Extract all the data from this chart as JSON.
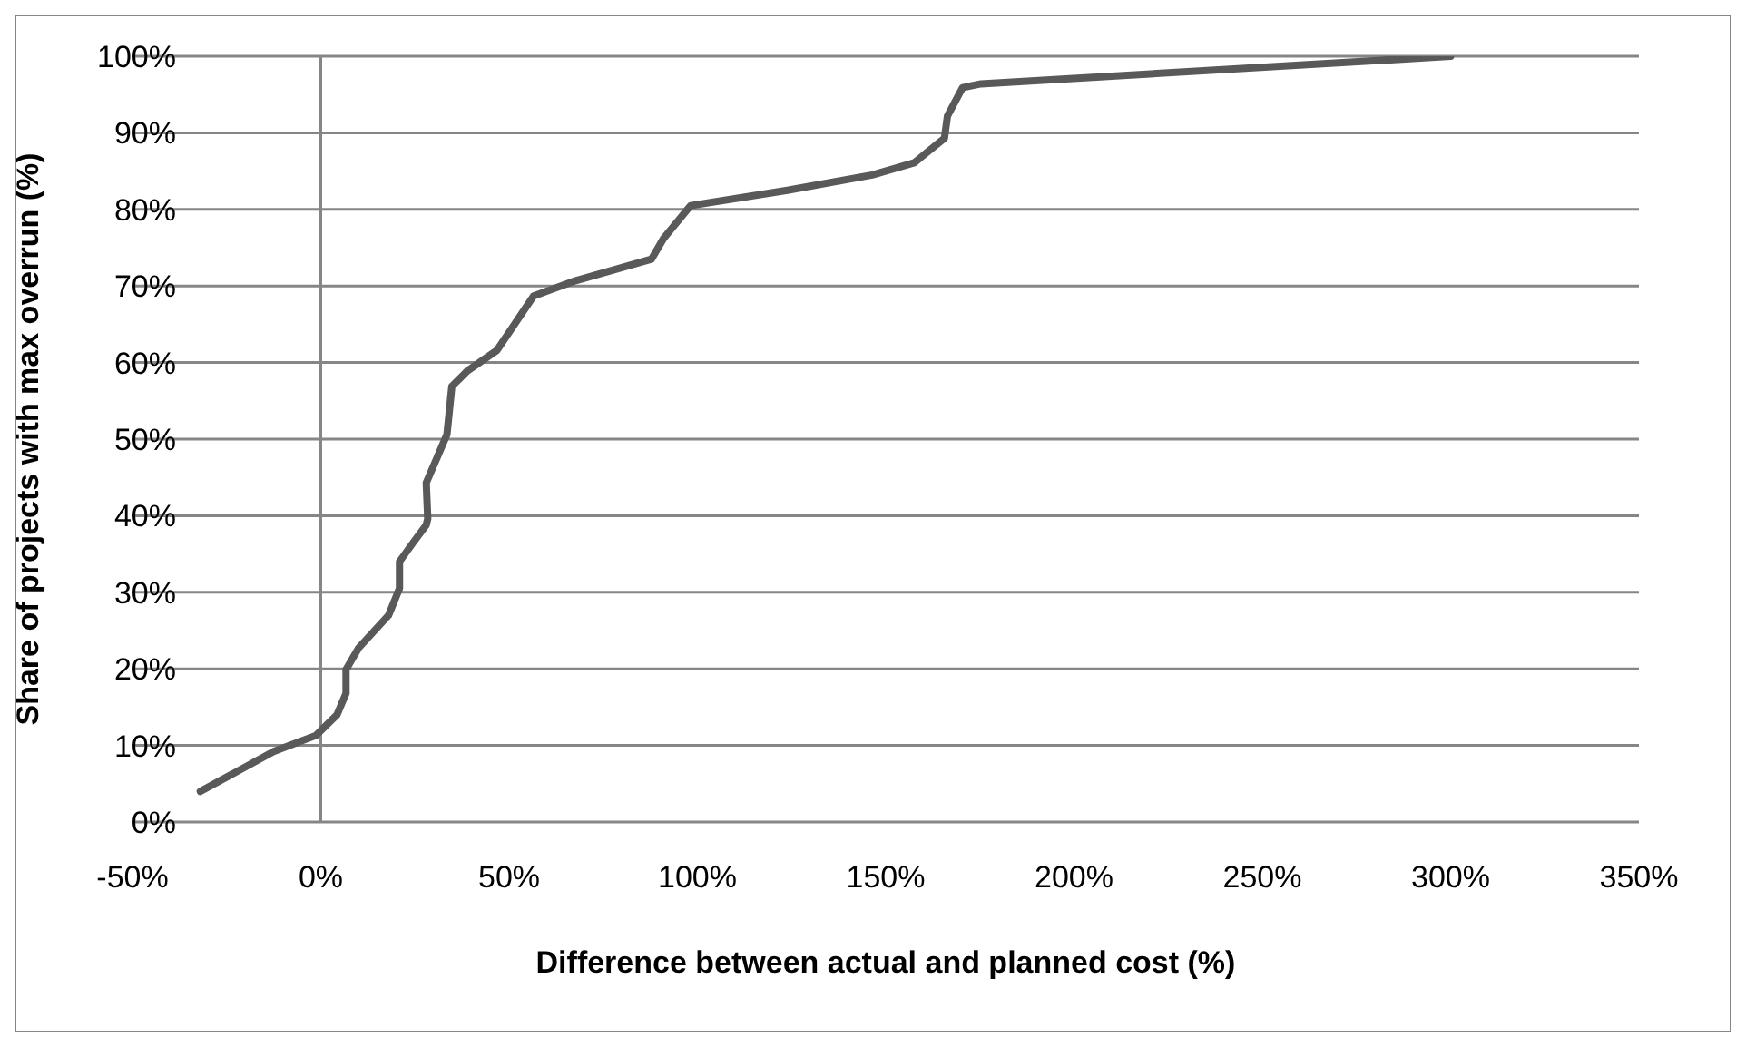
{
  "chart_data": {
    "type": "line",
    "xlabel": "Difference between actual and planned cost (%)",
    "ylabel": "Share of projects with max overrun (%)",
    "series": [
      {
        "color": "#595959",
        "x": [
          -32,
          -12.5,
          -1.3,
          4.3,
          6.7,
          6.7,
          10,
          18,
          20.9,
          20.9,
          24.4,
          28,
          28.4,
          28,
          30.8,
          33.5,
          34.8,
          38.9,
          46.8,
          56.5,
          67.7,
          87.8,
          91,
          98.2,
          123.9,
          146.4,
          157.6,
          165.6,
          166.4,
          170.4,
          175.3,
          300
        ],
        "values": [
          4,
          9.2,
          11.3,
          14,
          16.8,
          19.9,
          22.7,
          27,
          30.5,
          34,
          36.4,
          38.8,
          39.6,
          44.3,
          47.5,
          50.6,
          56.9,
          58.9,
          61.6,
          68.7,
          70.7,
          73.5,
          76.2,
          80.5,
          82.5,
          84.5,
          86.1,
          89.3,
          92.2,
          95.9,
          96.4,
          100
        ]
      }
    ],
    "xlim": [
      -50,
      350
    ],
    "xticks": [
      {
        "value": -50,
        "label": "-50%"
      },
      {
        "value": 0,
        "label": "0%"
      },
      {
        "value": 50,
        "label": "50%"
      },
      {
        "value": 100,
        "label": "100%"
      },
      {
        "value": 150,
        "label": "150%"
      },
      {
        "value": 200,
        "label": "200%"
      },
      {
        "value": 250,
        "label": "250%"
      },
      {
        "value": 300,
        "label": "300%"
      },
      {
        "value": 350,
        "label": "350%"
      }
    ],
    "ylim": [
      0,
      100
    ],
    "yticks": [
      {
        "value": 0,
        "label": "0%"
      },
      {
        "value": 10,
        "label": "10%"
      },
      {
        "value": 20,
        "label": "20%"
      },
      {
        "value": 30,
        "label": "30%"
      },
      {
        "value": 40,
        "label": "40%"
      },
      {
        "value": 50,
        "label": "50%"
      },
      {
        "value": 60,
        "label": "60%"
      },
      {
        "value": 70,
        "label": "70%"
      },
      {
        "value": 80,
        "label": "80%"
      },
      {
        "value": 90,
        "label": "90%"
      },
      {
        "value": 100,
        "label": "100%"
      }
    ],
    "grid": "y",
    "marker": "none",
    "line_style": "solid",
    "ref_lines": [
      {
        "axis": "x",
        "value": 0,
        "color": "#868686"
      }
    ]
  }
}
